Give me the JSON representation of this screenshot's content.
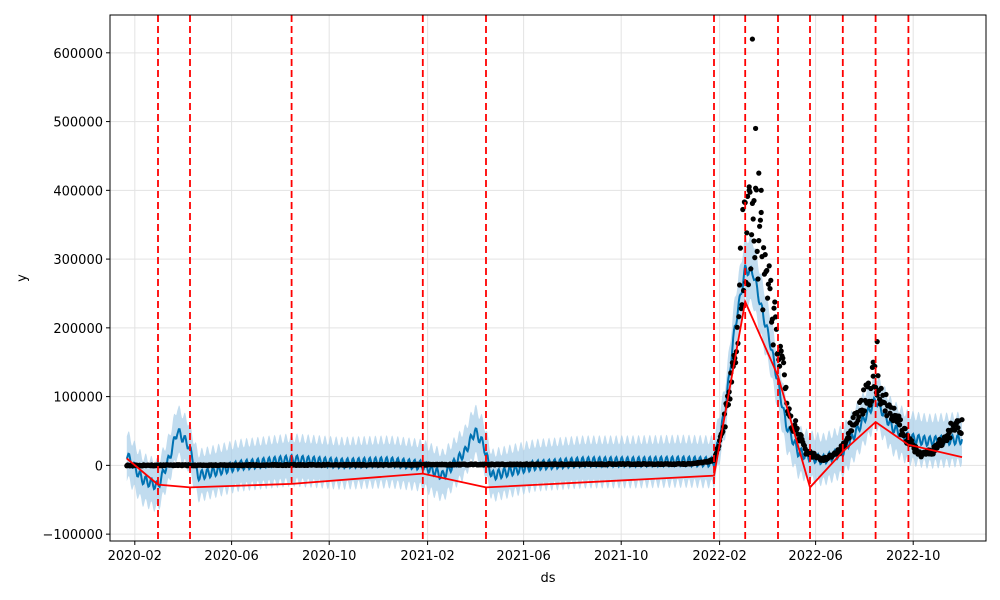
{
  "chart_data": {
    "type": "line",
    "xlabel": "ds",
    "ylabel": "y",
    "xlim": [
      "2020-01-01",
      "2022-12-31"
    ],
    "ylim": [
      -110000,
      655000
    ],
    "grid": true,
    "x_ticks": [
      "2020-02-01",
      "2020-06-01",
      "2020-10-01",
      "2021-02-01",
      "2021-06-01",
      "2021-10-01",
      "2022-02-01",
      "2022-06-01",
      "2022-10-01"
    ],
    "x_tick_labels": [
      "2020-02",
      "2020-06",
      "2020-10",
      "2021-02",
      "2021-06",
      "2021-10",
      "2022-02",
      "2022-06",
      "2022-10"
    ],
    "y_ticks": [
      -100000,
      0,
      100000,
      200000,
      300000,
      400000,
      500000,
      600000
    ],
    "y_tick_labels": [
      "−100000",
      "0",
      "100000",
      "200000",
      "300000",
      "400000",
      "500000",
      "600000"
    ],
    "colors": {
      "observed": "#000000",
      "forecast": "#0072b2",
      "uncertainty": "#a6cde8",
      "trend": "#ff0000",
      "changepoint": "#ff0000",
      "grid": "#e3e3e3"
    },
    "changepoints": [
      "2020-03-01",
      "2020-04-10",
      "2020-08-15",
      "2021-01-26",
      "2021-04-15",
      "2022-01-25",
      "2022-03-05",
      "2022-04-15",
      "2022-05-25",
      "2022-07-05",
      "2022-08-15",
      "2022-09-25"
    ],
    "trend": {
      "x": [
        "2020-01-22",
        "2020-03-01",
        "2020-04-10",
        "2020-08-15",
        "2021-01-26",
        "2021-04-15",
        "2022-01-25",
        "2022-03-05",
        "2022-04-15",
        "2022-05-25",
        "2022-07-05",
        "2022-08-15",
        "2022-09-25",
        "2022-12-01"
      ],
      "y": [
        10000,
        -28000,
        -32000,
        -27000,
        -12000,
        -32000,
        -15000,
        238000,
        130000,
        -32000,
        20000,
        63000,
        30000,
        12000
      ]
    },
    "forecast_anchors": {
      "x": [
        "2020-01-22",
        "2020-02-10",
        "2020-03-01",
        "2020-03-15",
        "2020-03-25",
        "2020-04-08",
        "2020-04-20",
        "2020-06-10",
        "2020-08-15",
        "2020-10-15",
        "2020-12-15",
        "2021-01-26",
        "2021-02-20",
        "2021-03-20",
        "2021-04-01",
        "2021-04-12",
        "2021-04-22",
        "2021-06-15",
        "2021-08-15",
        "2021-10-15",
        "2021-12-15",
        "2022-01-25",
        "2022-02-08",
        "2022-02-20",
        "2022-03-05",
        "2022-03-15",
        "2022-03-25",
        "2022-04-05",
        "2022-04-15",
        "2022-04-25",
        "2022-05-10",
        "2022-05-25",
        "2022-06-10",
        "2022-07-05",
        "2022-07-25",
        "2022-08-15",
        "2022-09-05",
        "2022-09-25",
        "2022-10-20",
        "2022-12-01"
      ],
      "y": [
        15000,
        -20000,
        -30000,
        10000,
        50000,
        30000,
        -15000,
        0,
        8000,
        3000,
        5000,
        0,
        -15000,
        20000,
        50000,
        30000,
        -15000,
        0,
        5000,
        5000,
        6000,
        5000,
        80000,
        200000,
        285000,
        280000,
        230000,
        180000,
        120000,
        60000,
        20000,
        12000,
        8000,
        20000,
        55000,
        95000,
        55000,
        40000,
        35000,
        38000
      ]
    },
    "observed_anchors": {
      "x": [
        "2020-01-22",
        "2021-12-20",
        "2022-01-10",
        "2022-01-25",
        "2022-02-05",
        "2022-02-20",
        "2022-03-01",
        "2022-03-10",
        "2022-03-20",
        "2022-04-01",
        "2022-04-15",
        "2022-05-01",
        "2022-05-20",
        "2022-06-10",
        "2022-07-01",
        "2022-07-20",
        "2022-08-05",
        "2022-08-15",
        "2022-08-25",
        "2022-09-10",
        "2022-09-25",
        "2022-10-10",
        "2022-10-25",
        "2022-11-15",
        "2022-12-01"
      ],
      "y": [
        0,
        2000,
        4000,
        8000,
        50000,
        160000,
        300000,
        340000,
        330000,
        260000,
        170000,
        70000,
        20000,
        8000,
        20000,
        65000,
        105000,
        125000,
        95000,
        70000,
        35000,
        15000,
        20000,
        50000,
        60000
      ]
    },
    "outliers": {
      "x": [
        "2022-03-14",
        "2022-03-18",
        "2022-03-22",
        "2022-03-25",
        "2022-03-10",
        "2022-03-16",
        "2022-08-17",
        "2022-08-12"
      ],
      "y": [
        620000,
        490000,
        425000,
        400000,
        405000,
        385000,
        180000,
        150000
      ]
    }
  }
}
